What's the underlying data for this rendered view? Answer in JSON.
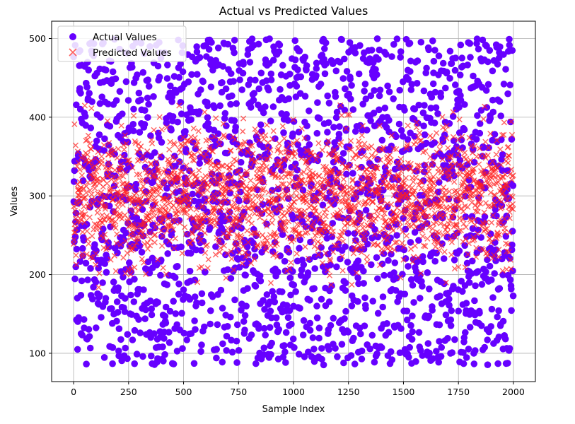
{
  "chart_data": {
    "type": "scatter",
    "title": "Actual vs Predicted Values",
    "xlabel": "Sample Index",
    "ylabel": "Values",
    "xlim": [
      -100,
      2100
    ],
    "ylim": [
      64,
      522
    ],
    "xticks": [
      0,
      250,
      500,
      750,
      1000,
      1250,
      1500,
      1750,
      2000
    ],
    "yticks": [
      100,
      200,
      300,
      400,
      500
    ],
    "grid": true,
    "legend_position": "top-left",
    "n_points_per_series": 2000,
    "series": [
      {
        "name": "Actual Values",
        "marker": "circle",
        "color": "#6600ff",
        "distribution": "uniform",
        "y_range": [
          85,
          500
        ],
        "approx_mean": 295
      },
      {
        "name": "Predicted Values",
        "marker": "x",
        "color": "#ff2020",
        "opacity": 0.7,
        "distribution": "normal-ish",
        "y_range": [
          180,
          420
        ],
        "approx_mean": 300
      }
    ]
  }
}
